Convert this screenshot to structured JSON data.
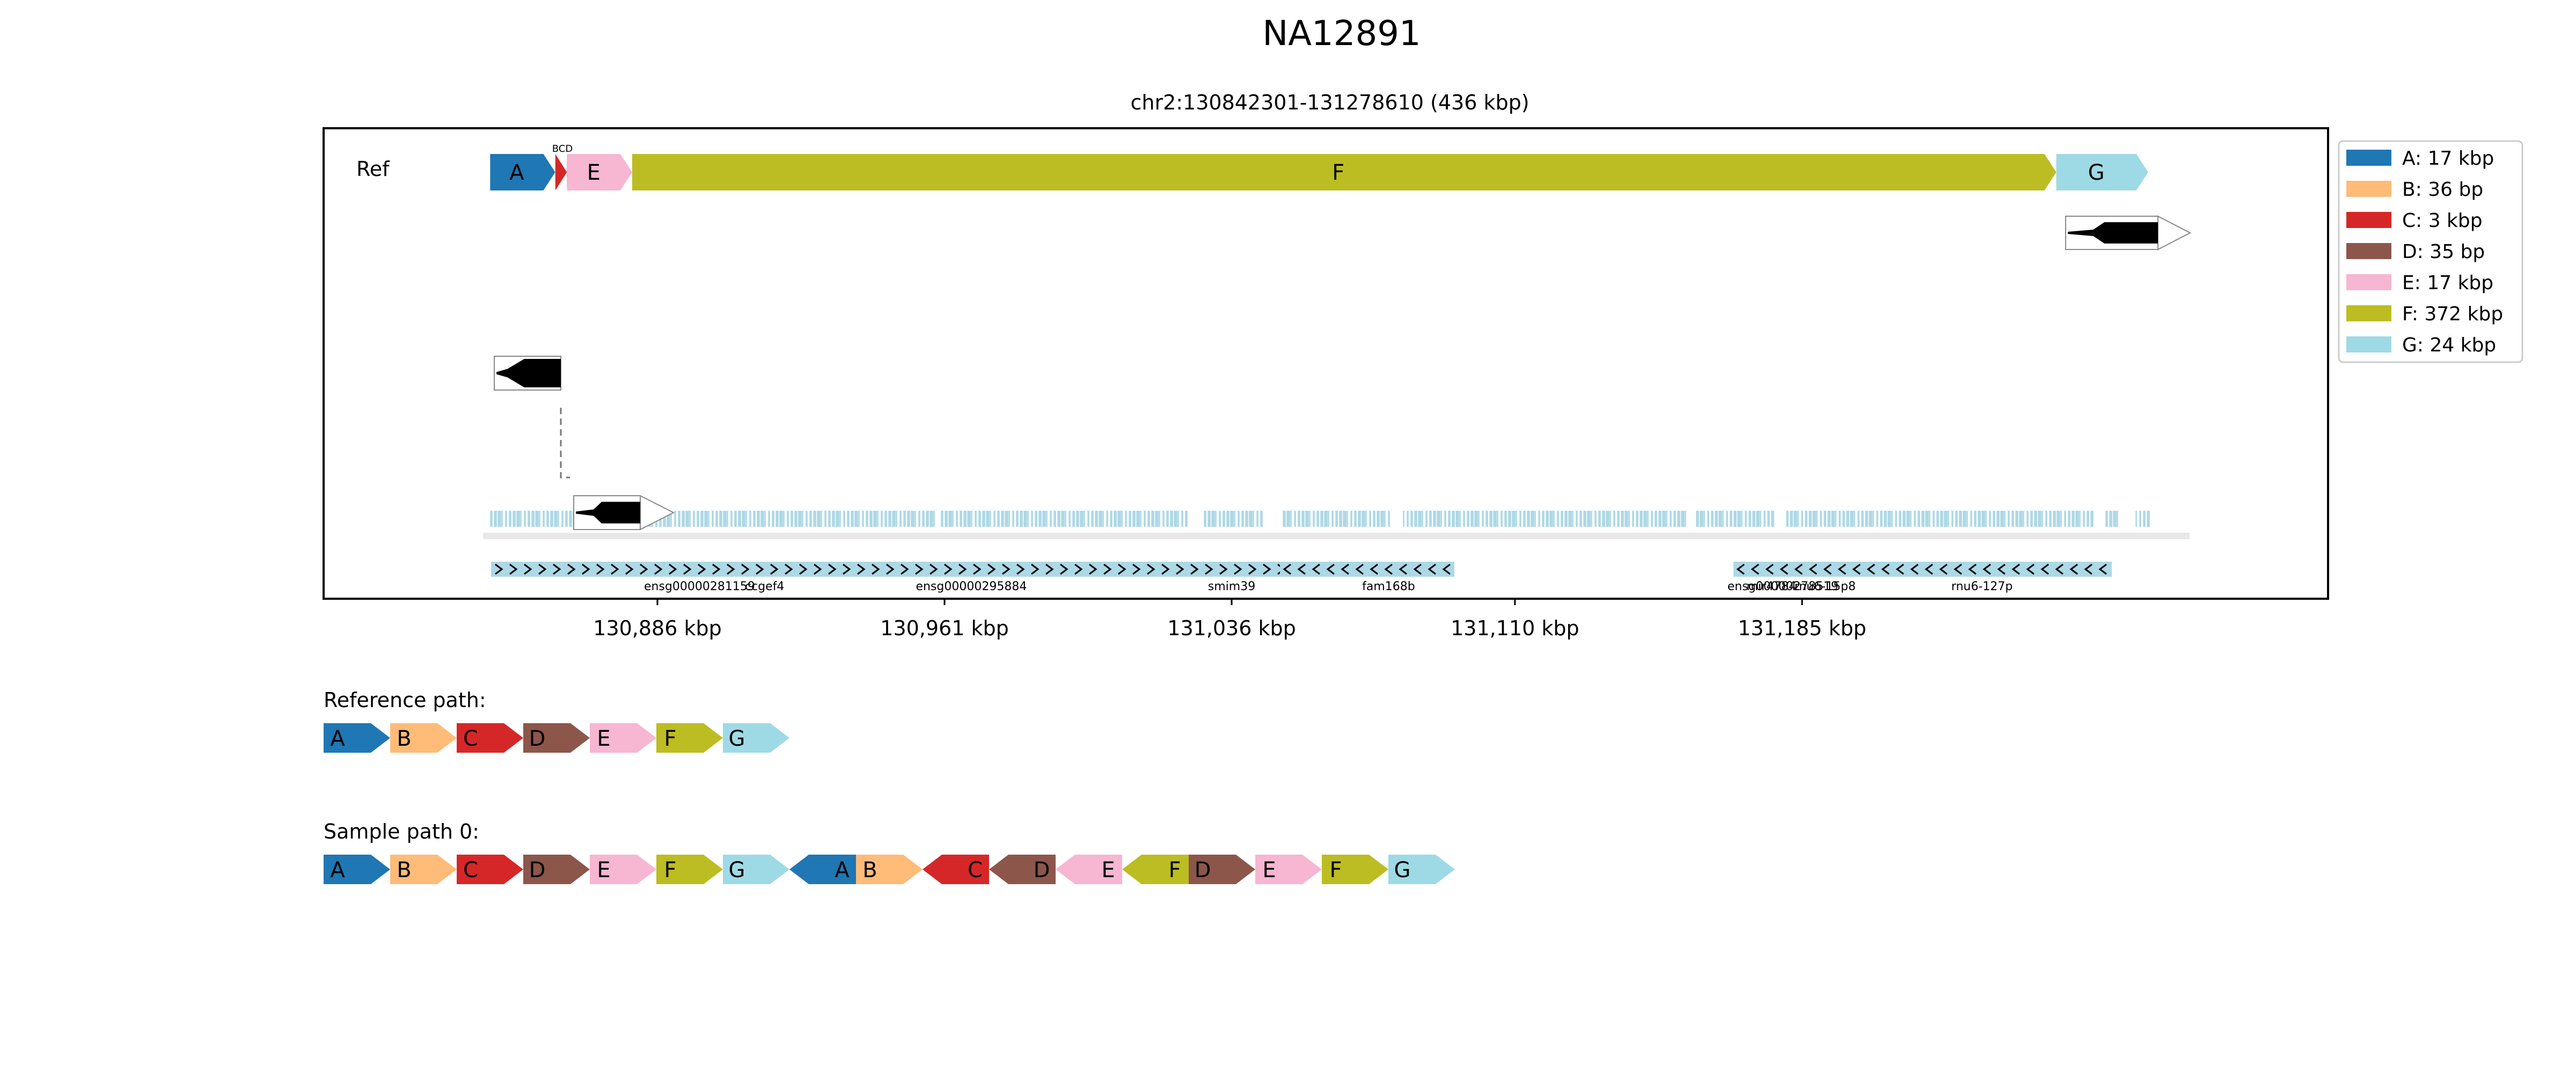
{
  "title": "NA12891",
  "subtitle": "chr2:130842301-131278610 (436 kbp)",
  "track_label": "Ref",
  "colors": {
    "A": "#1f77b4",
    "B": "#ffbb78",
    "C": "#d62728",
    "D": "#8c564b",
    "E": "#f7b6d2",
    "F": "#bcbd22",
    "G": "#9edae5",
    "annotation": "#add8e6",
    "frame": "#000000"
  },
  "legend": [
    {
      "id": "A",
      "label": "A: 17 kbp"
    },
    {
      "id": "B",
      "label": "B: 36 bp"
    },
    {
      "id": "C",
      "label": "C: 3 kbp"
    },
    {
      "id": "D",
      "label": "D: 35 bp"
    },
    {
      "id": "E",
      "label": "E: 17 kbp"
    },
    {
      "id": "F",
      "label": "F: 372 kbp"
    },
    {
      "id": "G",
      "label": "G: 24 kbp"
    }
  ],
  "ref_segments": [
    {
      "id": "A",
      "label": "A",
      "start_kbp": 130842.3,
      "end_kbp": 130859.3
    },
    {
      "id": "B",
      "label": "",
      "start_kbp": 130859.3,
      "end_kbp": 130859.34
    },
    {
      "id": "C",
      "label": "",
      "start_kbp": 130859.34,
      "end_kbp": 130862.34
    },
    {
      "id": "D",
      "label": "",
      "start_kbp": 130862.34,
      "end_kbp": 130862.38
    },
    {
      "id": "E",
      "label": "E",
      "start_kbp": 130862.38,
      "end_kbp": 130879.4
    },
    {
      "id": "F",
      "label": "F",
      "start_kbp": 130879.4,
      "end_kbp": 131251.4
    },
    {
      "id": "G",
      "label": "G",
      "start_kbp": 131251.4,
      "end_kbp": 131275.4
    }
  ],
  "small_label": "BCD",
  "x_ticks": [
    {
      "value_kbp": 130886,
      "label": "130,886 kbp"
    },
    {
      "value_kbp": 130961,
      "label": "130,961 kbp"
    },
    {
      "value_kbp": 131036,
      "label": "131,036 kbp"
    },
    {
      "value_kbp": 131110,
      "label": "131,110 kbp"
    },
    {
      "value_kbp": 131185,
      "label": "131,185 kbp"
    }
  ],
  "gene_labels": [
    {
      "label": "ensg00000281159",
      "pos_kbp": 130897
    },
    {
      "label": "ccgef4",
      "pos_kbp": 130914
    },
    {
      "label": "ensg00000295884",
      "pos_kbp": 130968
    },
    {
      "label": "smim39",
      "pos_kbp": 131036
    },
    {
      "label": "fam168b",
      "pos_kbp": 131077
    },
    {
      "label": "ensg00000278519",
      "pos_kbp": 131180
    },
    {
      "label": "mir4784",
      "pos_kbp": 131177
    },
    {
      "label": "rnu6-15p8",
      "pos_kbp": 131191
    },
    {
      "label": "rnu6-127p",
      "pos_kbp": 131232
    }
  ],
  "reference_path": {
    "label": "Reference path:",
    "items": [
      {
        "id": "A",
        "dir": 1
      },
      {
        "id": "B",
        "dir": 1
      },
      {
        "id": "C",
        "dir": 1
      },
      {
        "id": "D",
        "dir": 1
      },
      {
        "id": "E",
        "dir": 1
      },
      {
        "id": "F",
        "dir": 1
      },
      {
        "id": "G",
        "dir": 1
      }
    ]
  },
  "sample_path": {
    "label": "Sample path 0:",
    "items": [
      {
        "id": "A",
        "dir": 1
      },
      {
        "id": "B",
        "dir": 1
      },
      {
        "id": "C",
        "dir": 1
      },
      {
        "id": "D",
        "dir": 1
      },
      {
        "id": "E",
        "dir": 1
      },
      {
        "id": "F",
        "dir": 1
      },
      {
        "id": "G",
        "dir": 1
      },
      {
        "id": "A",
        "dir": -1
      },
      {
        "id": "B",
        "dir": 1
      },
      {
        "id": "C",
        "dir": -1
      },
      {
        "id": "D",
        "dir": -1
      },
      {
        "id": "E",
        "dir": -1
      },
      {
        "id": "F",
        "dir": -1
      },
      {
        "id": "D",
        "dir": 1
      },
      {
        "id": "E",
        "dir": 1
      },
      {
        "id": "F",
        "dir": 1
      },
      {
        "id": "G",
        "dir": 1
      }
    ]
  }
}
